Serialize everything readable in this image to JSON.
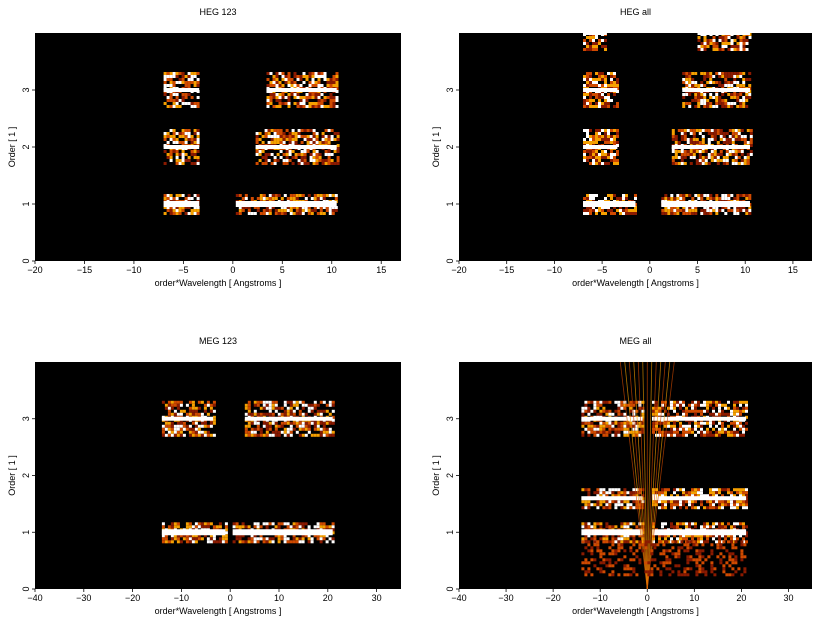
{
  "chart_data": [
    {
      "type": "heatmap",
      "title": "HEG 123",
      "xlabel": "order*Wavelength [ Angstroms ]",
      "ylabel": "Order [ 1 ]",
      "xlim": [
        -20,
        17
      ],
      "ylim": [
        0,
        4
      ],
      "xticks": [
        -20,
        -15,
        -10,
        -5,
        0,
        5,
        10,
        15
      ],
      "yticks": [
        0,
        1,
        2,
        3
      ],
      "background": "#000000",
      "colormap": [
        "#8a1a00",
        "#d04a00",
        "#f5a000",
        "#ffffff"
      ],
      "bands": [
        {
          "order": 1,
          "neg": [
            -7,
            -3.4
          ],
          "pos": [
            0.3,
            10.5
          ],
          "zero_gap": [
            -1,
            0.9
          ]
        },
        {
          "order": 2,
          "neg": [
            -7,
            -3.4
          ],
          "pos": [
            2.3,
            10.5
          ]
        },
        {
          "order": 3,
          "neg": [
            -7,
            -3.4
          ],
          "pos": [
            3.4,
            10.5
          ]
        }
      ]
    },
    {
      "type": "heatmap",
      "title": "HEG all",
      "xlabel": "order*Wavelength [ Angstroms ]",
      "ylabel": "Order [ 1 ]",
      "xlim": [
        -20,
        17
      ],
      "ylim": [
        0,
        4
      ],
      "xticks": [
        -20,
        -15,
        -10,
        -5,
        0,
        5,
        10,
        15
      ],
      "yticks": [
        0,
        1,
        2,
        3
      ],
      "background": "#000000",
      "colormap": [
        "#8a1a00",
        "#d04a00",
        "#f5a000",
        "#ffffff"
      ],
      "bands": [
        {
          "order": 1,
          "neg": [
            -7,
            -1.5
          ],
          "pos": [
            1.2,
            10.5
          ]
        },
        {
          "order": 2,
          "neg": [
            -7,
            -3.4
          ],
          "pos": [
            2.3,
            10.5
          ]
        },
        {
          "order": 3,
          "neg": [
            -7,
            -3.4
          ],
          "pos": [
            3.4,
            10.5
          ]
        },
        {
          "order": 4,
          "neg": [
            -7,
            -4.5
          ],
          "pos": [
            5,
            10.5
          ]
        }
      ]
    },
    {
      "type": "heatmap",
      "title": "MEG 123",
      "xlabel": "order*Wavelength [ Angstroms ]",
      "ylabel": "Order [ 1 ]",
      "xlim": [
        -40,
        35
      ],
      "ylim": [
        0,
        4
      ],
      "xticks": [
        -40,
        -30,
        -20,
        -10,
        0,
        10,
        20,
        30
      ],
      "yticks": [
        0,
        1,
        2,
        3
      ],
      "background": "#000000",
      "colormap": [
        "#8a1a00",
        "#d04a00",
        "#f5a000",
        "#ffffff"
      ],
      "bands": [
        {
          "order": 1,
          "neg": [
            -14,
            -1
          ],
          "pos": [
            0.5,
            21
          ]
        },
        {
          "order": 3,
          "neg": [
            -14,
            -3.5
          ],
          "pos": [
            3,
            21
          ]
        }
      ]
    },
    {
      "type": "heatmap",
      "title": "MEG all",
      "xlabel": "order*Wavelength [ Angstroms ]",
      "ylabel": "Order [ 1 ]",
      "xlim": [
        -40,
        35
      ],
      "ylim": [
        0,
        4
      ],
      "xticks": [
        -40,
        -30,
        -20,
        -10,
        0,
        10,
        20,
        30
      ],
      "yticks": [
        0,
        1,
        2,
        3
      ],
      "background": "#000000",
      "colormap": [
        "#8a1a00",
        "#d04a00",
        "#f5a000",
        "#ffffff"
      ],
      "bands": [
        {
          "order": 1,
          "neg": [
            -14,
            -1
          ],
          "pos": [
            1,
            21
          ]
        },
        {
          "order": 1.6,
          "neg": [
            -14,
            -1
          ],
          "pos": [
            1,
            21
          ]
        },
        {
          "order": 3,
          "neg": [
            -14,
            -1
          ],
          "pos": [
            1,
            21
          ]
        }
      ]
    }
  ]
}
